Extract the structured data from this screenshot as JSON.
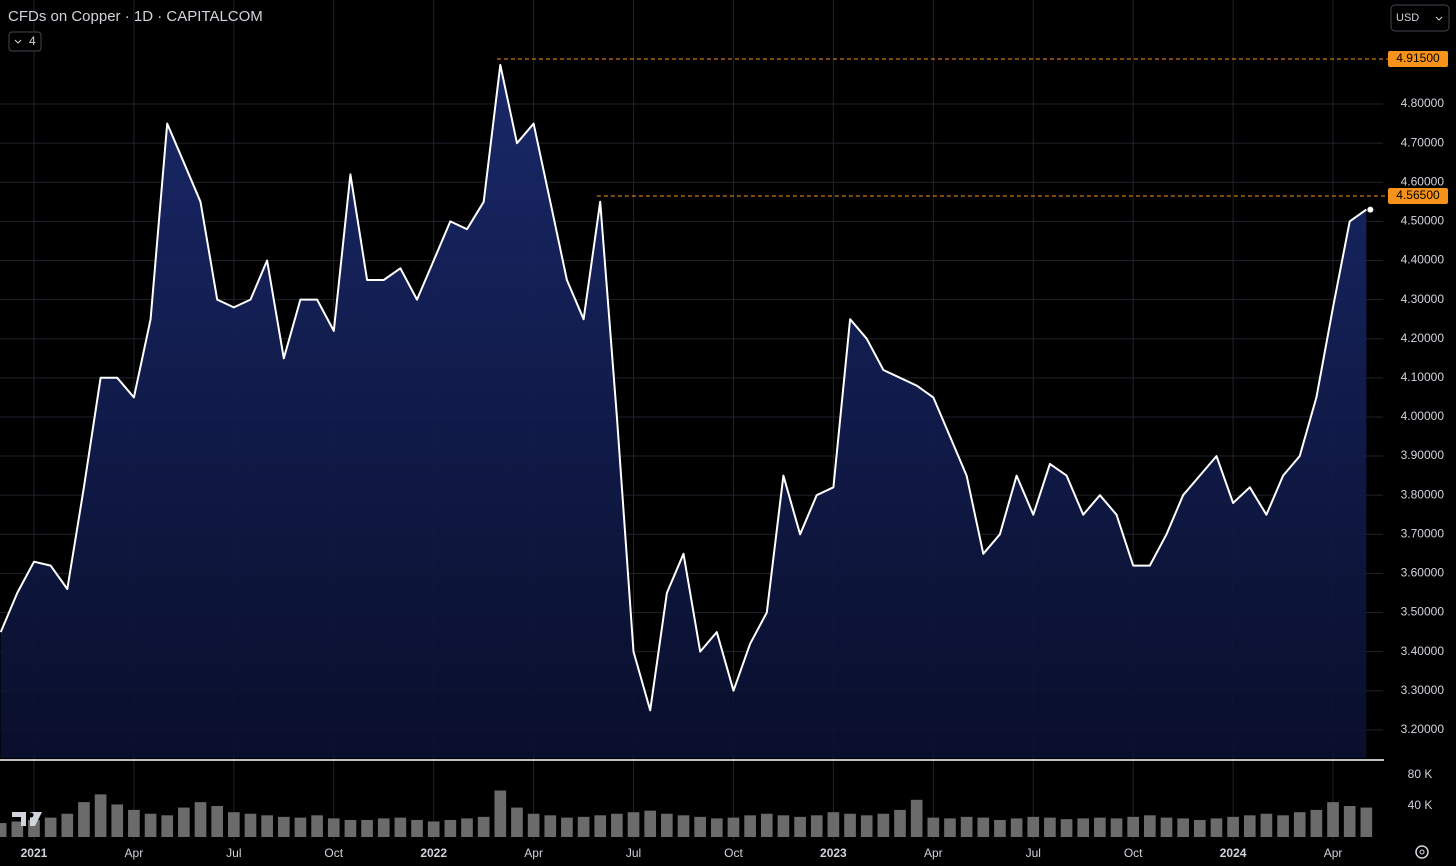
{
  "chart_data": {
    "type": "area",
    "title": "CFDs on Copper · 1D · CAPITALCOM",
    "x": [
      -1,
      -0.5,
      0,
      0.5,
      1,
      1.5,
      2,
      2.5,
      3,
      3.5,
      4,
      4.5,
      5,
      5.5,
      6,
      6.5,
      7,
      7.5,
      8,
      8.5,
      9,
      9.5,
      10,
      10.5,
      11,
      11.5,
      12,
      12.5,
      13,
      13.5,
      14,
      14.5,
      15,
      15.5,
      16,
      16.5,
      17,
      17.5,
      18,
      18.5,
      19,
      19.5,
      20,
      20.5,
      21,
      21.5,
      22,
      22.5,
      23,
      23.5,
      24,
      24.5,
      25,
      25.5,
      26,
      26.5,
      27,
      27.5,
      28,
      28.5,
      29,
      29.5,
      30,
      30.5,
      31,
      31.5,
      32,
      32.5,
      33,
      33.5,
      34,
      34.5,
      35,
      35.5,
      36,
      36.5,
      37,
      37.5,
      38,
      38.5,
      39,
      39.5,
      40
    ],
    "series": [
      {
        "name": "Price",
        "color": "#ffffff",
        "values": [
          3.45,
          3.55,
          3.63,
          3.62,
          3.56,
          3.82,
          4.1,
          4.1,
          4.05,
          4.25,
          4.75,
          4.65,
          4.55,
          4.3,
          4.28,
          4.3,
          4.4,
          4.15,
          4.3,
          4.3,
          4.22,
          4.62,
          4.35,
          4.35,
          4.38,
          4.3,
          4.4,
          4.5,
          4.48,
          4.55,
          4.9,
          4.7,
          4.75,
          4.55,
          4.35,
          4.25,
          4.55,
          4.0,
          3.4,
          3.25,
          3.55,
          3.65,
          3.4,
          3.45,
          3.3,
          3.42,
          3.5,
          3.85,
          3.7,
          3.8,
          3.82,
          4.25,
          4.2,
          4.12,
          4.1,
          4.08,
          4.05,
          3.95,
          3.85,
          3.65,
          3.7,
          3.85,
          3.75,
          3.88,
          3.85,
          3.75,
          3.8,
          3.75,
          3.62,
          3.62,
          3.7,
          3.8,
          3.85,
          3.9,
          3.78,
          3.82,
          3.75,
          3.85,
          3.9,
          4.05,
          4.28,
          4.5,
          4.53
        ]
      },
      {
        "name": "Volume",
        "color": "#6b6b6b",
        "axis": "volume",
        "values": [
          18000,
          20000,
          22000,
          25000,
          30000,
          45000,
          55000,
          42000,
          35000,
          30000,
          28000,
          38000,
          45000,
          40000,
          32000,
          30000,
          28000,
          26000,
          25000,
          28000,
          24000,
          22000,
          22000,
          24000,
          25000,
          22000,
          20000,
          22000,
          24000,
          26000,
          60000,
          38000,
          30000,
          28000,
          25000,
          26000,
          28000,
          30000,
          32000,
          34000,
          30000,
          28000,
          26000,
          24000,
          25000,
          28000,
          30000,
          28000,
          26000,
          28000,
          32000,
          30000,
          28000,
          30000,
          35000,
          48000,
          25000,
          24000,
          26000,
          25000,
          22000,
          24000,
          26000,
          25000,
          23000,
          24000,
          25000,
          24000,
          26000,
          28000,
          25000,
          24000,
          22000,
          24000,
          26000,
          28000,
          30000,
          28000,
          32000,
          35000,
          45000,
          40000,
          38000
        ]
      }
    ],
    "xlim": [
      -1.02,
      40.5
    ],
    "xticks": [
      {
        "value": 0,
        "label": "2021"
      },
      {
        "value": 3,
        "label": "Apr"
      },
      {
        "value": 6,
        "label": "Jul"
      },
      {
        "value": 9,
        "label": "Oct"
      },
      {
        "value": 12,
        "label": "2022"
      },
      {
        "value": 15,
        "label": "Apr"
      },
      {
        "value": 18,
        "label": "Jul"
      },
      {
        "value": 21,
        "label": "Oct"
      },
      {
        "value": 24,
        "label": "2023"
      },
      {
        "value": 27,
        "label": "Apr"
      },
      {
        "value": 30,
        "label": "Jul"
      },
      {
        "value": 33,
        "label": "Oct"
      },
      {
        "value": 36,
        "label": "2024"
      },
      {
        "value": 39,
        "label": "Apr"
      }
    ],
    "ylim": [
      3.128,
      5.066
    ],
    "yticks": [
      {
        "value": 3.2,
        "label": "3.20000"
      },
      {
        "value": 3.3,
        "label": "3.30000"
      },
      {
        "value": 3.4,
        "label": "3.40000"
      },
      {
        "value": 3.5,
        "label": "3.50000"
      },
      {
        "value": 3.6,
        "label": "3.60000"
      },
      {
        "value": 3.7,
        "label": "3.70000"
      },
      {
        "value": 3.8,
        "label": "3.80000"
      },
      {
        "value": 3.9,
        "label": "3.90000"
      },
      {
        "value": 4.0,
        "label": "4.00000"
      },
      {
        "value": 4.1,
        "label": "4.10000"
      },
      {
        "value": 4.2,
        "label": "4.20000"
      },
      {
        "value": 4.3,
        "label": "4.30000"
      },
      {
        "value": 4.4,
        "label": "4.40000"
      },
      {
        "value": 4.5,
        "label": "4.50000"
      },
      {
        "value": 4.6,
        "label": "4.60000"
      },
      {
        "value": 4.7,
        "label": "4.70000"
      },
      {
        "value": 4.8,
        "label": "4.80000"
      }
    ],
    "volume_lim": [
      0,
      96800
    ],
    "volume_ticks": [
      {
        "value": 40000,
        "label": "40 K"
      },
      {
        "value": 80000,
        "label": "80 K"
      }
    ],
    "levels": [
      {
        "value": 4.915,
        "label": "4.91500",
        "x": 13.9,
        "color": "#f7931a"
      },
      {
        "value": 4.565,
        "label": "4.56500",
        "x": 16.9,
        "color": "#f7931a"
      }
    ],
    "grid": true
  },
  "ui": {
    "currency": "USD",
    "indicator_count": "4"
  }
}
